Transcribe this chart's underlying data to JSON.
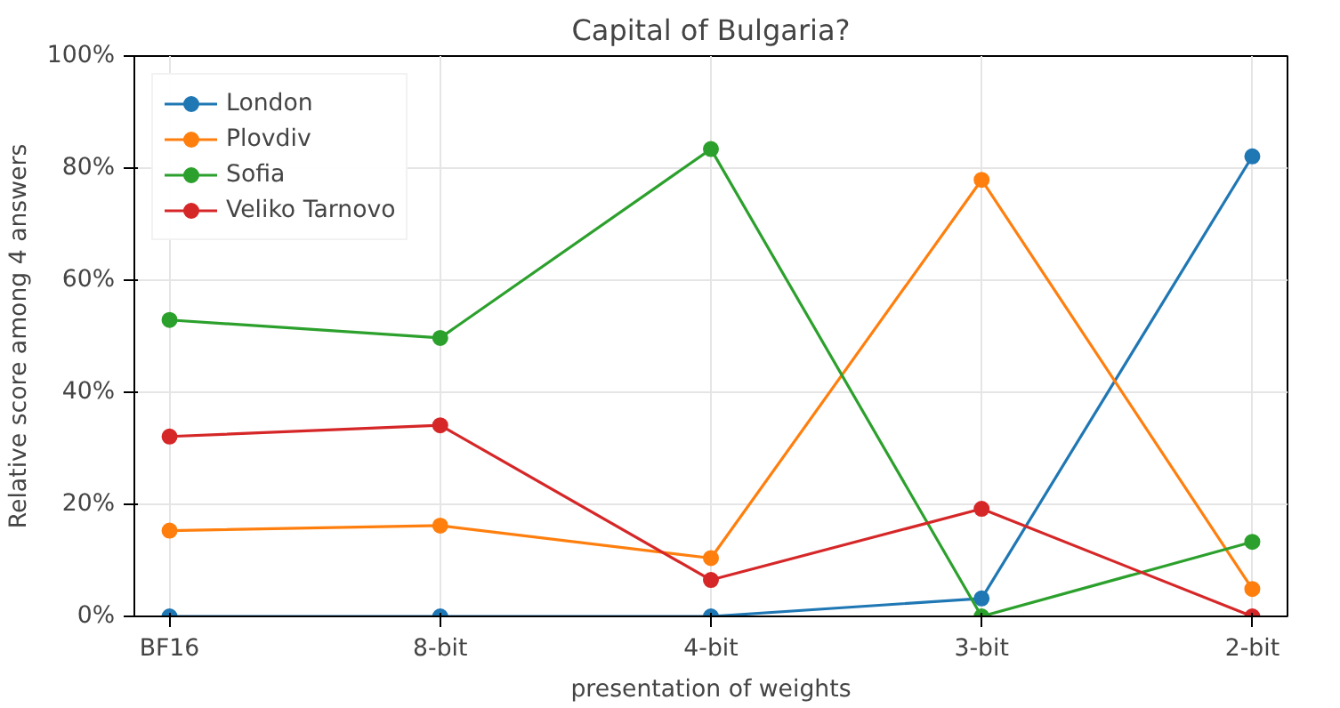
{
  "chart_data": {
    "type": "line",
    "title": "Capital of Bulgaria?",
    "xlabel": "presentation of weights",
    "ylabel": "Relative score among 4 answers",
    "categories": [
      "BF16",
      "8-bit",
      "4-bit",
      "3-bit",
      "2-bit"
    ],
    "series": [
      {
        "name": "London",
        "color": "#1f77b4",
        "values": [
          0,
          0,
          0,
          3.2,
          82.1
        ]
      },
      {
        "name": "Plovdiv",
        "color": "#ff7f0e",
        "values": [
          15.3,
          16.2,
          10.4,
          77.9,
          4.9
        ]
      },
      {
        "name": "Sofia",
        "color": "#2ca02c",
        "values": [
          52.9,
          49.7,
          83.4,
          0,
          13.3
        ]
      },
      {
        "name": "Veliko Tarnovo",
        "color": "#d62728",
        "values": [
          32.1,
          34.1,
          6.5,
          19.2,
          0
        ]
      }
    ],
    "ylim": [
      0,
      100
    ],
    "yticks": [
      {
        "value": 0,
        "label": "0%"
      },
      {
        "value": 20,
        "label": "20%"
      },
      {
        "value": 40,
        "label": "40%"
      },
      {
        "value": 60,
        "label": "60%"
      },
      {
        "value": 80,
        "label": "80%"
      },
      {
        "value": 100,
        "label": "100%"
      }
    ],
    "grid": true,
    "legend": "top left",
    "marker": "circle",
    "line_style": "solid"
  }
}
